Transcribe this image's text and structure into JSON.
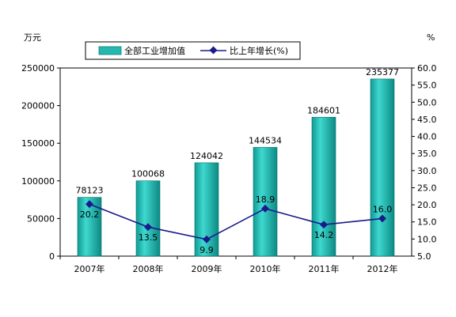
{
  "chart_data": {
    "type": "bar",
    "categories": [
      "2007年",
      "2008年",
      "2009年",
      "2010年",
      "2011年",
      "2012年"
    ],
    "series": [
      {
        "name": "全部工业增加值",
        "type": "bar",
        "axis": "left",
        "values": [
          78123,
          100068,
          124042,
          144534,
          184601,
          235377
        ],
        "color": "#26b8b0"
      },
      {
        "name": "比上年增长(%)",
        "type": "line",
        "axis": "right",
        "values": [
          20.2,
          13.5,
          9.9,
          18.9,
          14.2,
          16.0
        ],
        "color": "#1a1a8c"
      }
    ],
    "y_left": {
      "unit": "万元",
      "min": 0,
      "max": 250000,
      "ticks": [
        0,
        50000,
        100000,
        150000,
        200000,
        250000
      ]
    },
    "y_right": {
      "unit": "%",
      "min": 5,
      "max": 60,
      "ticks": [
        "5.0",
        "10.0",
        "15.0",
        "20.0",
        "25.0",
        "30.0",
        "35.0",
        "40.0",
        "45.0",
        "50.0",
        "55.0",
        "60.0"
      ]
    },
    "bar_labels": [
      "78123",
      "100068",
      "124042",
      "144534",
      "184601",
      "235377"
    ],
    "line_labels": [
      "20.2",
      "13.5",
      "9.9",
      "18.9",
      "14.2",
      "16.0"
    ],
    "legend": {
      "position": "top",
      "items": [
        "全部工业增加值",
        "比上年增长(%)"
      ]
    },
    "grid": false
  }
}
